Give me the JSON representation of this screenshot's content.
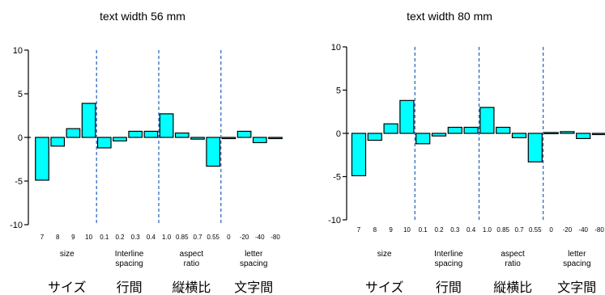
{
  "chart_data": [
    {
      "type": "bar",
      "title": "text width 56 mm",
      "ylim": [
        -10,
        10
      ],
      "yticks": [
        "10",
        "5",
        "0",
        "-5",
        "-10"
      ],
      "categories": [
        "7",
        "8",
        "9",
        "10",
        "0.1",
        "0.2",
        "0.3",
        "0.4",
        "1.0",
        "0.85",
        "0.7",
        "0.55",
        "0",
        "-20",
        "-40",
        "-80"
      ],
      "values": [
        -4.9,
        -1.0,
        1.0,
        3.9,
        -1.2,
        -0.4,
        0.7,
        0.7,
        2.7,
        0.5,
        -0.2,
        -3.3,
        -0.1,
        0.7,
        -0.6,
        -0.1
      ],
      "groups": [
        {
          "en": [
            "size"
          ],
          "jp": "サイズ"
        },
        {
          "en": [
            "Interline",
            "spacing"
          ],
          "jp": "行間"
        },
        {
          "en": [
            "aspect",
            "ratio"
          ],
          "jp": "縦横比"
        },
        {
          "en": [
            "letter",
            "spacing"
          ],
          "jp": "文字間"
        }
      ]
    },
    {
      "type": "bar",
      "title": "text width 80 mm",
      "ylim": [
        -10,
        10
      ],
      "yticks": [
        "10",
        "5",
        "0",
        "-5",
        "-10"
      ],
      "categories": [
        "7",
        "8",
        "9",
        "10",
        "0.1",
        "0.2",
        "0.3",
        "0.4",
        "1.0",
        "0.85",
        "0.7",
        "0.55",
        "0",
        "-20",
        "-40",
        "-80"
      ],
      "values": [
        -4.9,
        -0.8,
        1.1,
        3.8,
        -1.2,
        -0.3,
        0.7,
        0.7,
        3.0,
        0.7,
        -0.5,
        -3.3,
        0.1,
        0.2,
        -0.6,
        0.0
      ],
      "groups": [
        {
          "en": [
            "size"
          ],
          "jp": "サイズ"
        },
        {
          "en": [
            "Interline",
            "spacing"
          ],
          "jp": "行間"
        },
        {
          "en": [
            "aspect",
            "ratio"
          ],
          "jp": "縦横比"
        },
        {
          "en": [
            "letter",
            "spacing"
          ],
          "jp": "文字間"
        }
      ]
    }
  ]
}
